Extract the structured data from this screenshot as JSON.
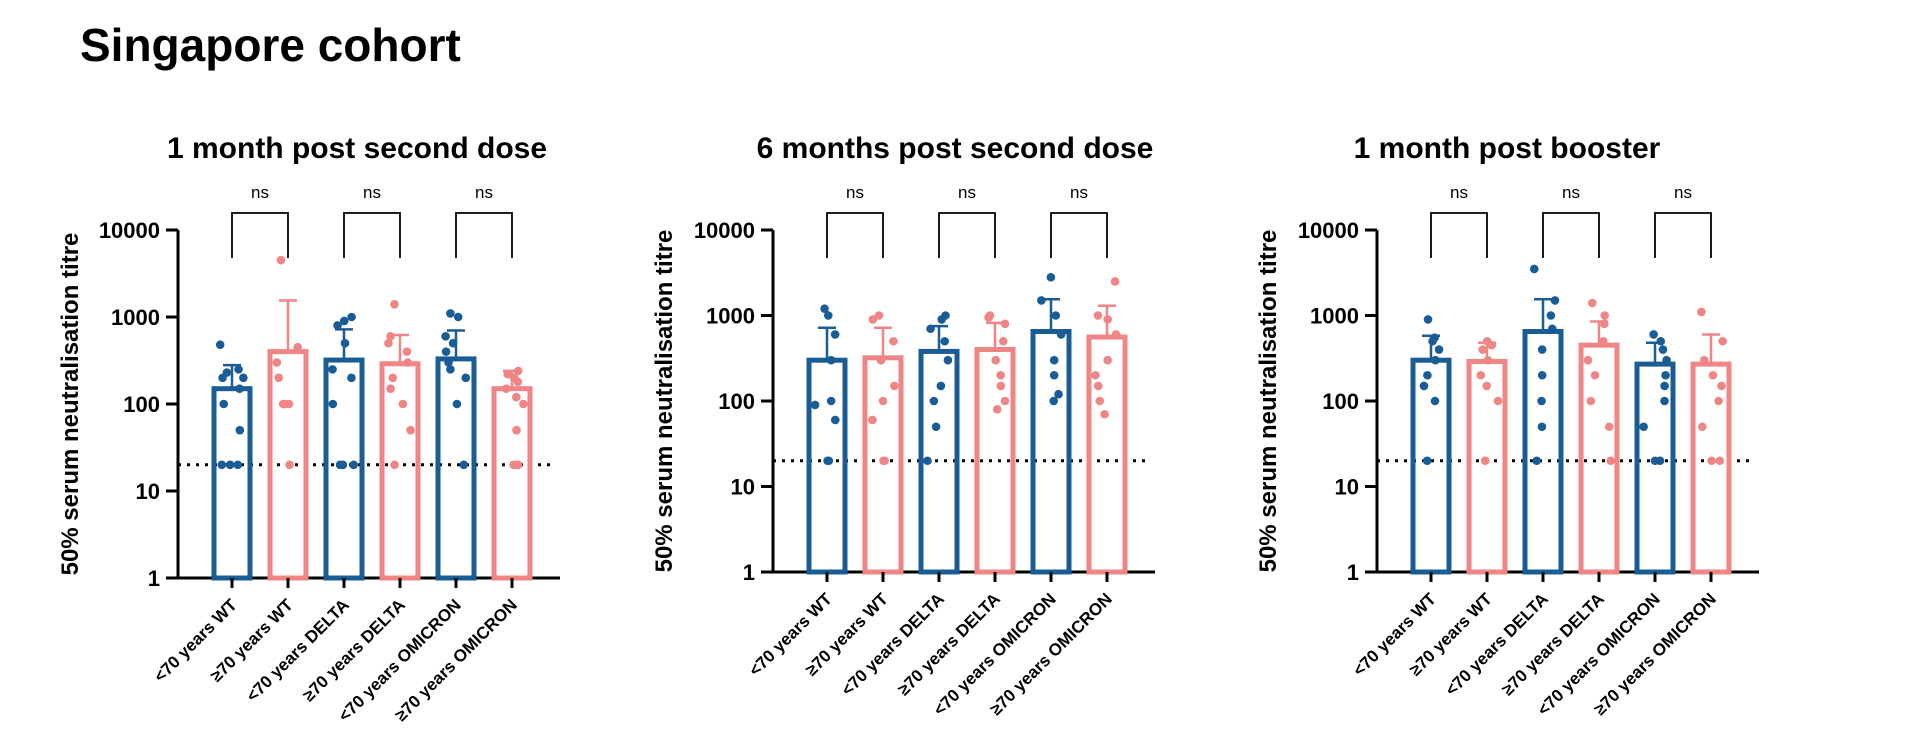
{
  "page": {
    "title": "Singapore cohort"
  },
  "colors": {
    "under70": "#1a5c96",
    "over70": "#f08585",
    "axis": "#000000"
  },
  "chart_data": [
    {
      "type": "bar",
      "title": "1 month post second dose",
      "ylabel": "50% serum neutralisation titre",
      "yscale": "log",
      "ylim": [
        1,
        10000
      ],
      "yticks": [
        1,
        10,
        100,
        1000,
        10000
      ],
      "threshold": 20,
      "categories": [
        "<70 years WT",
        "≥70 years WT",
        "<70 years DELTA",
        "≥70 years DELTA",
        "<70 years OMICRON",
        "≥70 years OMICRON"
      ],
      "values": [
        150,
        400,
        320,
        290,
        330,
        150
      ],
      "error_upper": [
        280,
        1550,
        720,
        620,
        700,
        240
      ],
      "points": [
        [
          20,
          20,
          20,
          50,
          100,
          150,
          200,
          200,
          230,
          250,
          480
        ],
        [
          20,
          100,
          100,
          100,
          200,
          300,
          450,
          4500
        ],
        [
          20,
          20,
          20,
          100,
          200,
          250,
          500,
          800,
          900,
          1000
        ],
        [
          20,
          50,
          100,
          150,
          200,
          300,
          400,
          500,
          600,
          1400
        ],
        [
          20,
          100,
          200,
          250,
          300,
          400,
          500,
          600,
          1000,
          1100
        ],
        [
          20,
          20,
          50,
          100,
          120,
          150,
          180,
          200,
          220,
          240
        ]
      ],
      "comparisons": [
        {
          "pair": [
            0,
            1
          ],
          "label": "ns"
        },
        {
          "pair": [
            2,
            3
          ],
          "label": "ns"
        },
        {
          "pair": [
            4,
            5
          ],
          "label": "ns"
        }
      ]
    },
    {
      "type": "bar",
      "title": "6 months post second dose",
      "ylabel": "50% serum neutralisation titre",
      "yscale": "log",
      "ylim": [
        1,
        10000
      ],
      "yticks": [
        1,
        10,
        100,
        1000,
        10000
      ],
      "threshold": 20,
      "categories": [
        "<70 years WT",
        "≥70 years WT",
        "<70 years DELTA",
        "≥70 years DELTA",
        "<70 years OMICRON",
        "≥70 years OMICRON"
      ],
      "values": [
        300,
        320,
        380,
        400,
        650,
        560
      ],
      "error_upper": [
        720,
        720,
        750,
        820,
        1550,
        1300
      ],
      "points": [
        [
          20,
          20,
          60,
          90,
          100,
          300,
          600,
          1000,
          1200
        ],
        [
          20,
          20,
          60,
          100,
          150,
          300,
          500,
          900,
          1000
        ],
        [
          20,
          50,
          100,
          150,
          300,
          500,
          700,
          900,
          1000
        ],
        [
          80,
          100,
          150,
          200,
          300,
          500,
          800,
          950,
          1000
        ],
        [
          100,
          120,
          200,
          300,
          600,
          1000,
          1500,
          2800
        ],
        [
          70,
          100,
          150,
          200,
          300,
          600,
          900,
          1000,
          2500
        ]
      ],
      "comparisons": [
        {
          "pair": [
            0,
            1
          ],
          "label": "ns"
        },
        {
          "pair": [
            2,
            3
          ],
          "label": "ns"
        },
        {
          "pair": [
            4,
            5
          ],
          "label": "ns"
        }
      ]
    },
    {
      "type": "bar",
      "title": "1 month post booster",
      "ylabel": "50% serum neutralisation titre",
      "yscale": "log",
      "ylim": [
        1,
        10000
      ],
      "yticks": [
        1,
        10,
        100,
        1000,
        10000
      ],
      "threshold": 20,
      "categories": [
        "<70 years WT",
        "≥70 years WT",
        "<70 years DELTA",
        "≥70 years DELTA",
        "<70 years OMICRON",
        "≥70 years OMICRON"
      ],
      "values": [
        300,
        290,
        650,
        450,
        270,
        270
      ],
      "error_upper": [
        580,
        480,
        1550,
        850,
        480,
        600
      ],
      "points": [
        [
          20,
          100,
          150,
          200,
          300,
          400,
          500,
          550,
          900
        ],
        [
          20,
          100,
          150,
          200,
          300,
          400,
          450,
          500
        ],
        [
          20,
          50,
          100,
          200,
          400,
          700,
          1000,
          1500,
          3500
        ],
        [
          20,
          50,
          100,
          200,
          300,
          500,
          800,
          1000,
          1400
        ],
        [
          20,
          20,
          50,
          100,
          150,
          200,
          300,
          400,
          500,
          600
        ],
        [
          20,
          20,
          50,
          100,
          150,
          200,
          300,
          500,
          1100
        ]
      ],
      "comparisons": [
        {
          "pair": [
            0,
            1
          ],
          "label": "ns"
        },
        {
          "pair": [
            2,
            3
          ],
          "label": "ns"
        },
        {
          "pair": [
            4,
            5
          ],
          "label": "ns"
        }
      ]
    }
  ]
}
